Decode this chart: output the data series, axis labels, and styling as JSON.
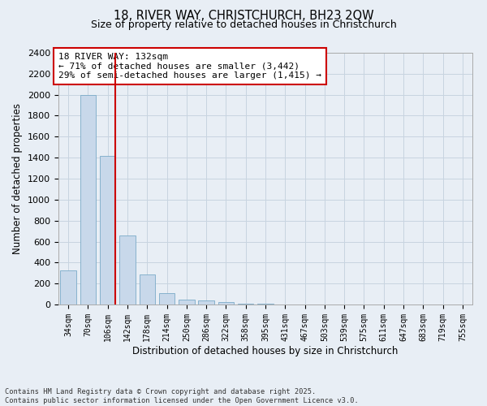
{
  "title_line1": "18, RIVER WAY, CHRISTCHURCH, BH23 2QW",
  "title_line2": "Size of property relative to detached houses in Christchurch",
  "xlabel": "Distribution of detached houses by size in Christchurch",
  "ylabel": "Number of detached properties",
  "categories": [
    "34sqm",
    "70sqm",
    "106sqm",
    "142sqm",
    "178sqm",
    "214sqm",
    "250sqm",
    "286sqm",
    "322sqm",
    "358sqm",
    "395sqm",
    "431sqm",
    "467sqm",
    "503sqm",
    "539sqm",
    "575sqm",
    "611sqm",
    "647sqm",
    "683sqm",
    "719sqm",
    "755sqm"
  ],
  "values": [
    325,
    2000,
    1420,
    655,
    290,
    105,
    45,
    35,
    20,
    10,
    5,
    0,
    0,
    0,
    0,
    0,
    0,
    0,
    0,
    0,
    0
  ],
  "ylim": [
    0,
    2400
  ],
  "yticks": [
    0,
    200,
    400,
    600,
    800,
    1000,
    1200,
    1400,
    1600,
    1800,
    2000,
    2200,
    2400
  ],
  "bar_color": "#c8d8ea",
  "bar_edge_color": "#7aaac8",
  "grid_color": "#c8d4e0",
  "vline_color": "#cc0000",
  "annotation_text": "18 RIVER WAY: 132sqm\n← 71% of detached houses are smaller (3,442)\n29% of semi-detached houses are larger (1,415) →",
  "annotation_box_color": "#ffffff",
  "annotation_box_edge": "#cc0000",
  "footer_line1": "Contains HM Land Registry data © Crown copyright and database right 2025.",
  "footer_line2": "Contains public sector information licensed under the Open Government Licence v3.0.",
  "background_color": "#e8eef5",
  "plot_bg_color": "#e8eef5"
}
